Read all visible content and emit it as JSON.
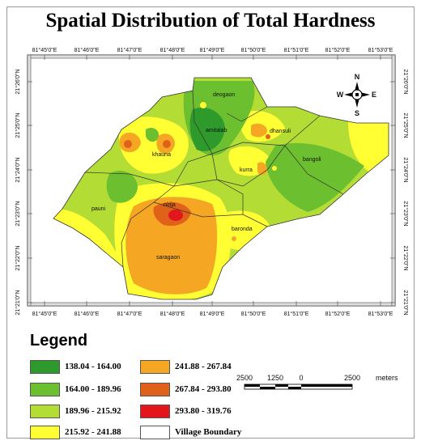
{
  "title": "Spatial Distribution of Total Hardness",
  "longitudes": [
    "81°45'0\"E",
    "81°46'0\"E",
    "81°47'0\"E",
    "81°48'0\"E",
    "81°49'0\"E",
    "81°50'0\"E",
    "81°51'0\"E",
    "81°52'0\"E",
    "81°53'0\"E"
  ],
  "latitudes": [
    "21°26'0\"N",
    "21°25'0\"N",
    "21°24'0\"N",
    "21°23'0\"N",
    "21°22'0\"N",
    "21°21'0\"N"
  ],
  "villages": [
    "deogaon",
    "amitalab",
    "dhansuli",
    "khauna",
    "kurra",
    "bangoli",
    "pauni",
    "nirija",
    "baronda",
    "saragaon"
  ],
  "north_arrow": {
    "n": "N",
    "s": "S",
    "e": "E",
    "w": "W",
    "icon": "compass-rose-icon"
  },
  "legend": {
    "title": "Legend",
    "items": [
      {
        "label": "138.04 - 164.00",
        "color": "#2f9a2c"
      },
      {
        "label": "164.00 - 189.96",
        "color": "#6cbf2e"
      },
      {
        "label": "189.96 - 215.92",
        "color": "#b3dc35"
      },
      {
        "label": "215.92 - 241.88",
        "color": "#ffff33"
      },
      {
        "label": "241.88 - 267.84",
        "color": "#f5a623"
      },
      {
        "label": "267.84 - 293.80",
        "color": "#e0611a"
      },
      {
        "label": "293.80 - 319.76",
        "color": "#e3171b"
      },
      {
        "label": "Village Boundary",
        "color": "#ffffff"
      }
    ]
  },
  "scale_bar": {
    "ticks": [
      "2500",
      "1250",
      "0",
      "2500"
    ],
    "unit": "meters"
  }
}
